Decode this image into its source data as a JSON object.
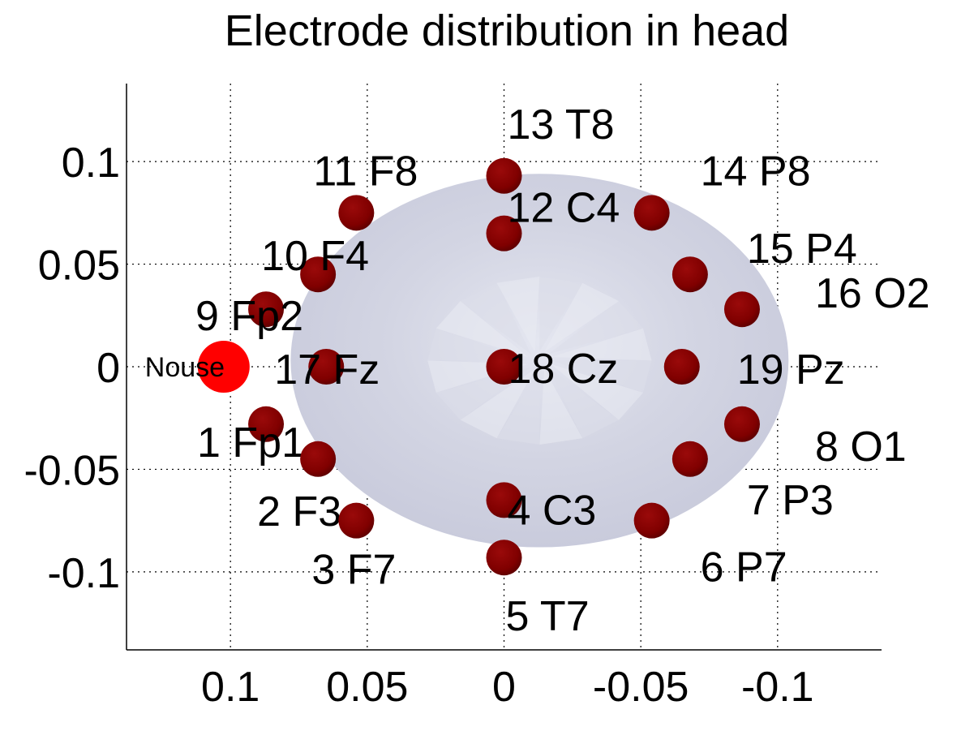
{
  "chart_data": {
    "type": "scatter",
    "title": "Electrode distribution in head",
    "xlabel": "",
    "ylabel": "",
    "xlim": [
      0.138,
      -0.138
    ],
    "ylim": [
      -0.138,
      0.138
    ],
    "x_reversed": true,
    "grid": true,
    "x_ticks": [
      0.1,
      0.05,
      0,
      -0.05,
      -0.1
    ],
    "x_tick_labels": [
      "0.1",
      "0.05",
      "0",
      "-0.05",
      "-0.1"
    ],
    "y_ticks": [
      0.1,
      0.05,
      0,
      -0.05,
      -0.1
    ],
    "y_tick_labels": [
      "0.1",
      "0.05",
      "0",
      "-0.05",
      "-0.1"
    ],
    "head_surface": {
      "shape": "ellipse",
      "center": [
        -0.013,
        0.003
      ],
      "radius_x": 0.091,
      "radius_y": 0.091,
      "color": "#c9cbdc"
    },
    "nose": {
      "label": "Nouse",
      "x": 0.101,
      "y": 0.0,
      "color": "#ff0000"
    },
    "electrode_color": "#800000",
    "electrodes": [
      {
        "label": "1 Fp1",
        "x": 0.087,
        "y": -0.028
      },
      {
        "label": "2 F3",
        "x": 0.068,
        "y": -0.045
      },
      {
        "label": "3 F7",
        "x": 0.054,
        "y": -0.075
      },
      {
        "label": "4 C3",
        "x": 0.0,
        "y": -0.065
      },
      {
        "label": "5 T7",
        "x": 0.0,
        "y": -0.093
      },
      {
        "label": "6 P7",
        "x": -0.054,
        "y": -0.075
      },
      {
        "label": "7 P3",
        "x": -0.068,
        "y": -0.045
      },
      {
        "label": "8 O1",
        "x": -0.087,
        "y": -0.028
      },
      {
        "label": "9 Fp2",
        "x": 0.087,
        "y": 0.028
      },
      {
        "label": "10 F4",
        "x": 0.068,
        "y": 0.045
      },
      {
        "label": "11 F8",
        "x": 0.054,
        "y": 0.075
      },
      {
        "label": "12 C4",
        "x": 0.0,
        "y": 0.065
      },
      {
        "label": "13 T8",
        "x": 0.0,
        "y": 0.093
      },
      {
        "label": "14 P8",
        "x": -0.054,
        "y": 0.075
      },
      {
        "label": "15 P4",
        "x": -0.068,
        "y": 0.045
      },
      {
        "label": "16 O2",
        "x": -0.087,
        "y": 0.028
      },
      {
        "label": "17 Fz",
        "x": 0.065,
        "y": 0.0
      },
      {
        "label": "18 Cz",
        "x": 0.0,
        "y": 0.0
      },
      {
        "label": "19 Pz",
        "x": -0.065,
        "y": 0.0
      }
    ]
  }
}
